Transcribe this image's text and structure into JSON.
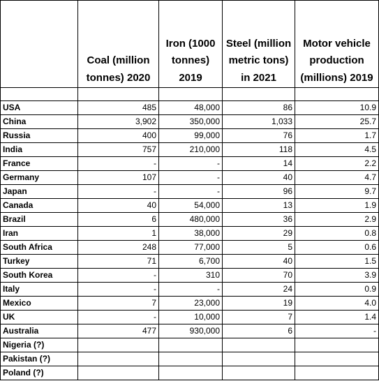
{
  "headers": {
    "country": "",
    "coal": "Coal (million tonnes) 2020",
    "iron": "Iron (1000 tonnes) 2019",
    "steel": "Steel (million metric tons) in 2021",
    "motor": "Motor vehicle production (millions) 2019"
  },
  "rows": [
    {
      "country": "USA",
      "coal": "485",
      "iron": "48,000",
      "steel": "86",
      "motor": "10.9"
    },
    {
      "country": "China",
      "coal": "3,902",
      "iron": "350,000",
      "steel": "1,033",
      "motor": "25.7"
    },
    {
      "country": "Russia",
      "coal": "400",
      "iron": "99,000",
      "steel": "76",
      "motor": "1.7"
    },
    {
      "country": "India",
      "coal": "757",
      "iron": "210,000",
      "steel": "118",
      "motor": "4.5"
    },
    {
      "country": "France",
      "coal": "-",
      "iron": "-",
      "steel": "14",
      "motor": "2.2"
    },
    {
      "country": "Germany",
      "coal": "107",
      "iron": "-",
      "steel": "40",
      "motor": "4.7"
    },
    {
      "country": "Japan",
      "coal": "-",
      "iron": "-",
      "steel": "96",
      "motor": "9.7"
    },
    {
      "country": "Canada",
      "coal": "40",
      "iron": "54,000",
      "steel": "13",
      "motor": "1.9"
    },
    {
      "country": "Brazil",
      "coal": "6",
      "iron": "480,000",
      "steel": "36",
      "motor": "2.9"
    },
    {
      "country": "Iran",
      "coal": "1",
      "iron": "38,000",
      "steel": "29",
      "motor": "0.8"
    },
    {
      "country": "South Africa",
      "coal": "248",
      "iron": "77,000",
      "steel": "5",
      "motor": "0.6"
    },
    {
      "country": "Turkey",
      "coal": "71",
      "iron": "6,700",
      "steel": "40",
      "motor": "1.5"
    },
    {
      "country": "South Korea",
      "coal": "-",
      "iron": "310",
      "steel": "70",
      "motor": "3.9"
    },
    {
      "country": "Italy",
      "coal": "-",
      "iron": "-",
      "steel": "24",
      "motor": "0.9"
    },
    {
      "country": "Mexico",
      "coal": "7",
      "iron": "23,000",
      "steel": "19",
      "motor": "4.0"
    },
    {
      "country": "UK",
      "coal": "-",
      "iron": "10,000",
      "steel": "7",
      "motor": "1.4"
    },
    {
      "country": "Australia",
      "coal": "477",
      "iron": "930,000",
      "steel": "6",
      "motor": "-"
    },
    {
      "country": "Nigeria (?)",
      "coal": "",
      "iron": "",
      "steel": "",
      "motor": ""
    },
    {
      "country": "Pakistan (?)",
      "coal": "",
      "iron": "",
      "steel": "",
      "motor": ""
    },
    {
      "country": "Poland (?)",
      "coal": "",
      "iron": "",
      "steel": "",
      "motor": ""
    }
  ]
}
